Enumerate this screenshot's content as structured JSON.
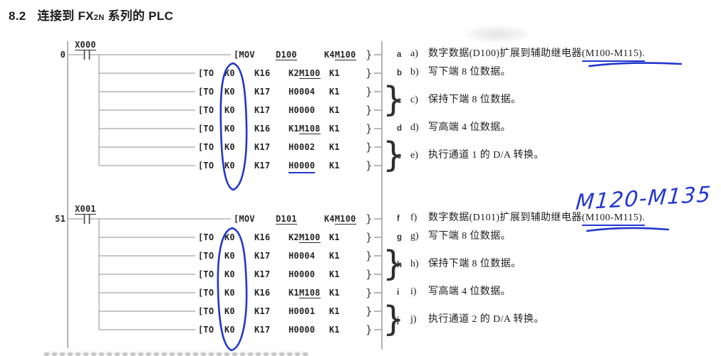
{
  "title": {
    "num": "8.2",
    "main_pre": "连接到 FX",
    "sub": "2N",
    "main_post": " 系列的 PLC"
  },
  "ink_color": "#2338cd",
  "rungs": [
    {
      "step": "0",
      "contact": "X000",
      "rows": [
        {
          "op": "[MOV",
          "cells": [
            {
              "pre": "",
              "und": "D100"
            },
            {
              "pre": "K4",
              "und": "M100"
            }
          ]
        },
        {
          "op": "[TO",
          "cells": [
            {
              "pre": "K0"
            },
            {
              "pre": "K16"
            },
            {
              "pre": "K2",
              "und": "M100"
            },
            {
              "pre": "K1"
            }
          ]
        },
        {
          "op": "[TO",
          "cells": [
            {
              "pre": "K0"
            },
            {
              "pre": "K17"
            },
            {
              "pre": "H0004"
            },
            {
              "pre": "K1"
            }
          ]
        },
        {
          "op": "[TO",
          "cells": [
            {
              "pre": "K0"
            },
            {
              "pre": "K17"
            },
            {
              "pre": "H0000"
            },
            {
              "pre": "K1"
            }
          ]
        },
        {
          "op": "[TO",
          "cells": [
            {
              "pre": "K0"
            },
            {
              "pre": "K16"
            },
            {
              "pre": "K1",
              "und": "M108"
            },
            {
              "pre": "K1"
            }
          ]
        },
        {
          "op": "[TO",
          "cells": [
            {
              "pre": "K0"
            },
            {
              "pre": "K17"
            },
            {
              "pre": "H0002"
            },
            {
              "pre": "K1"
            }
          ]
        },
        {
          "op": "[TO",
          "cells": [
            {
              "pre": "K0"
            },
            {
              "pre": "K17"
            },
            {
              "pre": "H0000",
              "mark": true
            },
            {
              "pre": "K1"
            }
          ]
        }
      ],
      "annotations": [
        {
          "letter": "a",
          "label": "a)",
          "pre": "数字数据(D100)扩展到辅助继电器",
          "marked": "(M100-M115).",
          "rows": [
            0
          ]
        },
        {
          "letter": "b",
          "label": "b)",
          "pre": "写下端 8 位数据。",
          "marked": "",
          "rows": [
            1
          ]
        },
        {
          "letter": "c",
          "label": "c)",
          "pre": "保持下端 8 位数据。",
          "marked": "",
          "rows": [
            2,
            3
          ],
          "brace": true
        },
        {
          "letter": "d",
          "label": "d)",
          "pre": "写高端 4 位数据。",
          "marked": "",
          "rows": [
            4
          ]
        },
        {
          "letter": "e",
          "label": "e)",
          "pre": "执行通道 1 的 D/A 转换。",
          "marked": "",
          "rows": [
            5,
            6
          ],
          "brace": true
        }
      ]
    },
    {
      "step": "51",
      "contact": "X001",
      "rows": [
        {
          "op": "[MOV",
          "cells": [
            {
              "pre": "",
              "und": "D101"
            },
            {
              "pre": "K4",
              "und": "M100"
            }
          ]
        },
        {
          "op": "[TO",
          "cells": [
            {
              "pre": "K0"
            },
            {
              "pre": "K16"
            },
            {
              "pre": "K2",
              "und": "M100"
            },
            {
              "pre": "K1"
            }
          ]
        },
        {
          "op": "[TO",
          "cells": [
            {
              "pre": "K0"
            },
            {
              "pre": "K17"
            },
            {
              "pre": "H0004"
            },
            {
              "pre": "K1"
            }
          ]
        },
        {
          "op": "[TO",
          "cells": [
            {
              "pre": "K0"
            },
            {
              "pre": "K17"
            },
            {
              "pre": "H0000"
            },
            {
              "pre": "K1"
            }
          ]
        },
        {
          "op": "[TO",
          "cells": [
            {
              "pre": "K0"
            },
            {
              "pre": "K16"
            },
            {
              "pre": "K1",
              "und": "M108"
            },
            {
              "pre": "K1"
            }
          ]
        },
        {
          "op": "[TO",
          "cells": [
            {
              "pre": "K0"
            },
            {
              "pre": "K17"
            },
            {
              "pre": "H0001"
            },
            {
              "pre": "K1"
            }
          ]
        },
        {
          "op": "[TO",
          "cells": [
            {
              "pre": "K0"
            },
            {
              "pre": "K17"
            },
            {
              "pre": "H0000"
            },
            {
              "pre": "K1"
            }
          ]
        }
      ],
      "annotations": [
        {
          "letter": "f",
          "label": "f)",
          "pre": "数字数据(D101)扩展到辅助继电器",
          "marked": "(M100-M115).",
          "rows": [
            0
          ]
        },
        {
          "letter": "g",
          "label": "g)",
          "pre": "写下端 8 位数据。",
          "marked": "",
          "rows": [
            1
          ]
        },
        {
          "letter": "h",
          "label": "h)",
          "pre": "保持下端 8 位数据。",
          "marked": "",
          "rows": [
            2,
            3
          ],
          "brace": true
        },
        {
          "letter": "i",
          "label": "i)",
          "pre": "写高端 4 位数据。",
          "marked": "",
          "rows": [
            4
          ]
        },
        {
          "letter": "j",
          "label": "j)",
          "pre": "执行通道 2 的 D/A 转换。",
          "marked": "",
          "rows": [
            5,
            6
          ],
          "brace": true
        }
      ]
    }
  ],
  "handwriting": {
    "text": "M120-M135"
  },
  "ink_marks": [
    {
      "type": "oval",
      "target": "K0 operand column of rung 1"
    },
    {
      "type": "oval",
      "target": "K0 operand column of rung 2"
    },
    {
      "type": "underline",
      "target": "H0000 in last TO row of rung 1"
    },
    {
      "type": "underline",
      "target": "(M100-M115) in note a"
    },
    {
      "type": "underline",
      "target": "(M100-M115) in note f"
    },
    {
      "type": "handwriting",
      "target": "above note f"
    }
  ]
}
